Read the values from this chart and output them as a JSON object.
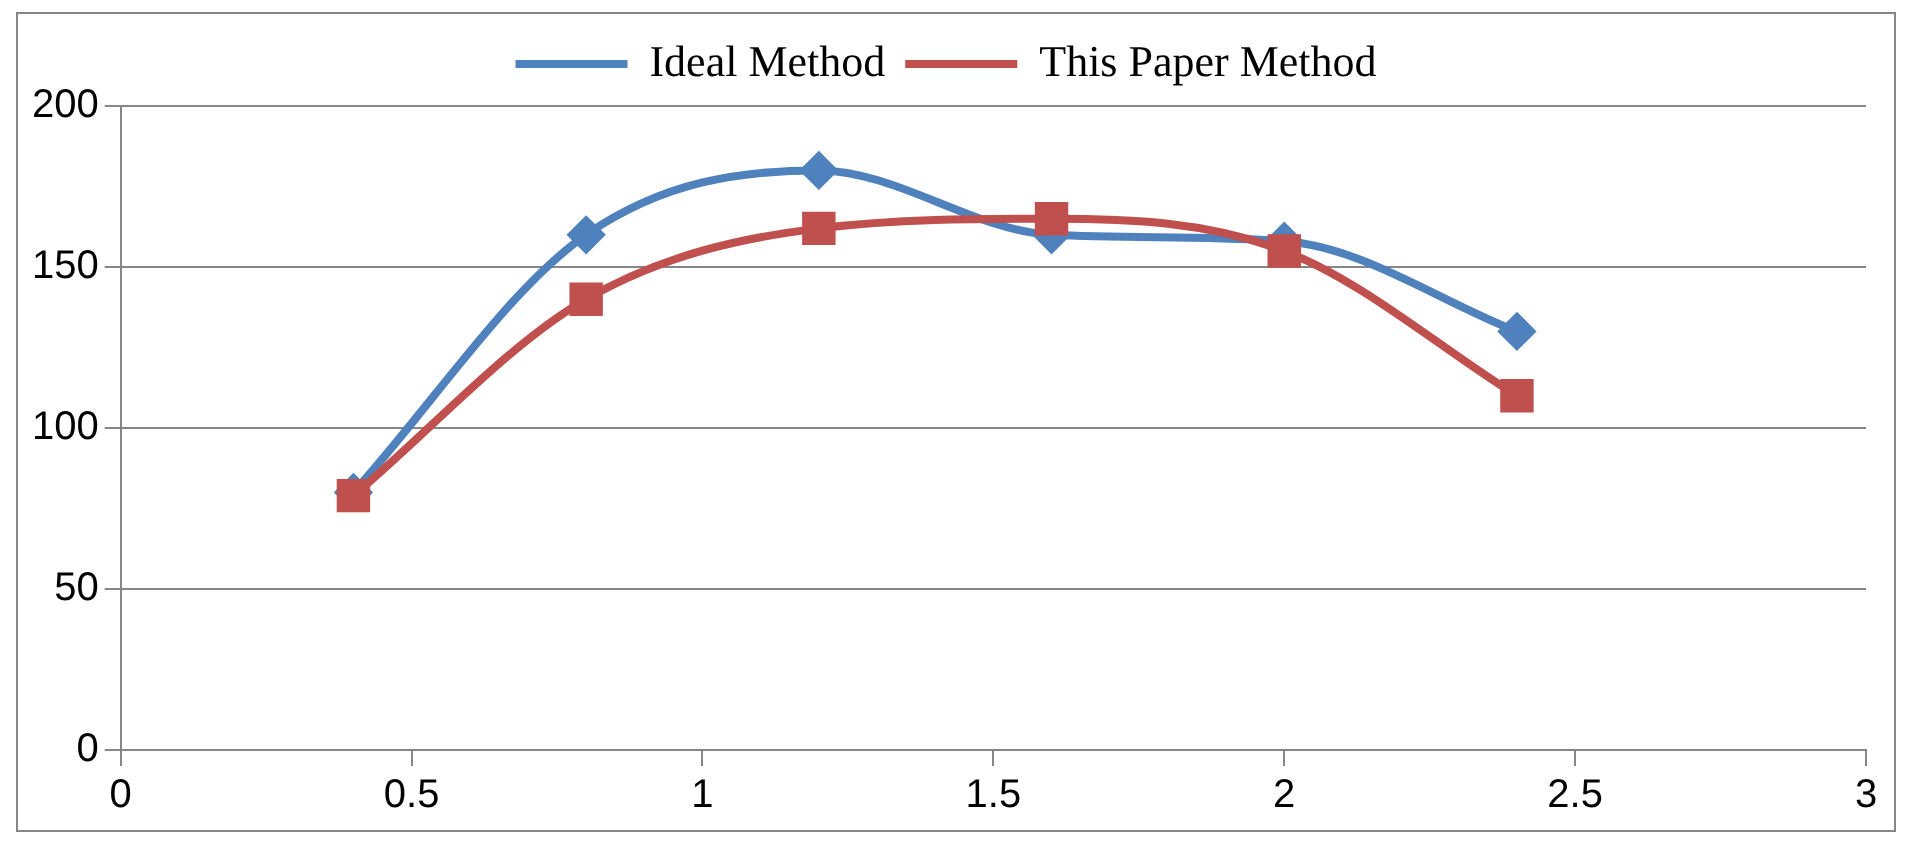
{
  "chart_data": {
    "type": "line",
    "x": [
      0.4,
      0.8,
      1.2,
      1.6,
      2.0,
      2.4
    ],
    "series": [
      {
        "name": "Ideal Method",
        "color": "#4f81bd",
        "marker": "diamond",
        "values": [
          80,
          160,
          180,
          160,
          158,
          130
        ]
      },
      {
        "name": "This Paper Method",
        "color": "#c0504d",
        "marker": "square",
        "values": [
          79,
          140,
          162,
          165,
          155,
          110
        ]
      }
    ],
    "xlim": [
      0,
      3
    ],
    "xticks": [
      0,
      0.5,
      1,
      1.5,
      2,
      2.5,
      3
    ],
    "ylim": [
      0,
      200
    ],
    "yticks": [
      0,
      50,
      100,
      150,
      200
    ],
    "grid": "y",
    "legend": "top",
    "line_style": "solid"
  }
}
